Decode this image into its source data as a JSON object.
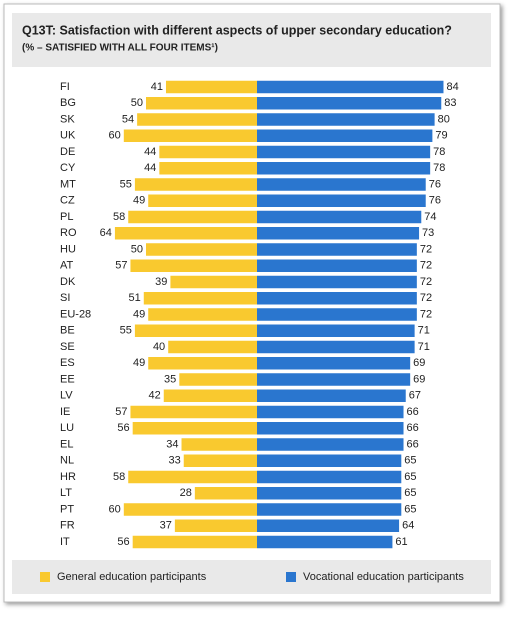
{
  "chart_data": {
    "type": "butterfly",
    "title": "Q13T:  Satisfaction with different aspects of upper secondary education?",
    "subtitle": "(% – SATISFIED WITH ALL FOUR ITEMS¹)",
    "categories": [
      "FI",
      "BG",
      "SK",
      "UK",
      "DE",
      "CY",
      "MT",
      "CZ",
      "PL",
      "RO",
      "HU",
      "AT",
      "DK",
      "SI",
      "EU-28",
      "BE",
      "SE",
      "ES",
      "EE",
      "LV",
      "IE",
      "LU",
      "EL",
      "NL",
      "HR",
      "LT",
      "PT",
      "FR",
      "IT"
    ],
    "series": [
      {
        "name": "General education participants",
        "color": "#f9c92f",
        "values": [
          41,
          50,
          54,
          60,
          44,
          44,
          55,
          49,
          58,
          64,
          50,
          57,
          39,
          51,
          49,
          55,
          40,
          49,
          35,
          42,
          57,
          56,
          34,
          33,
          58,
          28,
          60,
          37,
          56
        ]
      },
      {
        "name": "Vocational education participants",
        "color": "#2a76cf",
        "values": [
          84,
          83,
          80,
          79,
          78,
          78,
          76,
          76,
          74,
          73,
          72,
          72,
          72,
          72,
          72,
          71,
          71,
          69,
          69,
          67,
          66,
          66,
          66,
          65,
          65,
          65,
          65,
          64,
          61
        ]
      }
    ]
  }
}
